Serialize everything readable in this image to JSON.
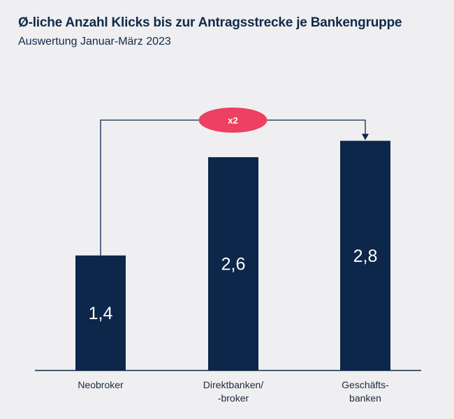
{
  "chart_data": {
    "type": "bar",
    "title": "Ø-liche Anzahl Klicks bis zur Antragsstrecke je Bankengruppe",
    "subtitle": "Auswertung Januar-März 2023",
    "categories": [
      [
        "Neobroker"
      ],
      [
        "Direktbanken/",
        "-broker"
      ],
      [
        "Geschäfts-",
        "banken"
      ]
    ],
    "values": [
      1.4,
      2.6,
      2.8
    ],
    "value_labels": [
      "1,4",
      "2,6",
      "2,8"
    ],
    "ylim": [
      0,
      3.3
    ],
    "grid": false,
    "annotation": {
      "text": "x2",
      "from_index": 0,
      "to_index": 2
    },
    "colors": {
      "bar": "#0c2749",
      "badge": "#ee4060",
      "line": "#0c2749",
      "axis": "#0c2749"
    }
  }
}
